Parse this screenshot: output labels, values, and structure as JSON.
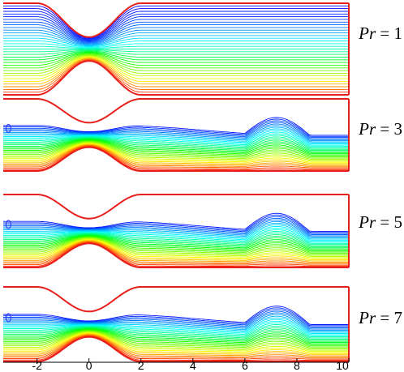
{
  "chart_data": {
    "type": "contour",
    "panels": [
      {
        "label_var": "Pr",
        "label_eq": " = ",
        "pr_value": "1"
      },
      {
        "label_var": "Pr",
        "label_eq": " = ",
        "pr_value": "3"
      },
      {
        "label_var": "Pr",
        "label_eq": " = ",
        "pr_value": "5"
      },
      {
        "label_var": "Pr",
        "label_eq": " = ",
        "pr_value": "7"
      }
    ],
    "x_ticks": [
      "-2",
      "0",
      "2",
      "4",
      "6",
      "8",
      "10"
    ],
    "x_tick_values": [
      -2,
      0,
      2,
      4,
      6,
      8,
      10
    ],
    "xlim": [
      -3.3,
      10
    ],
    "grid": false,
    "boundary_color": "#e8201c",
    "colormap": [
      "#0000ff",
      "#00ffff",
      "#00ff00",
      "#ffff00",
      "#ff0000"
    ]
  }
}
